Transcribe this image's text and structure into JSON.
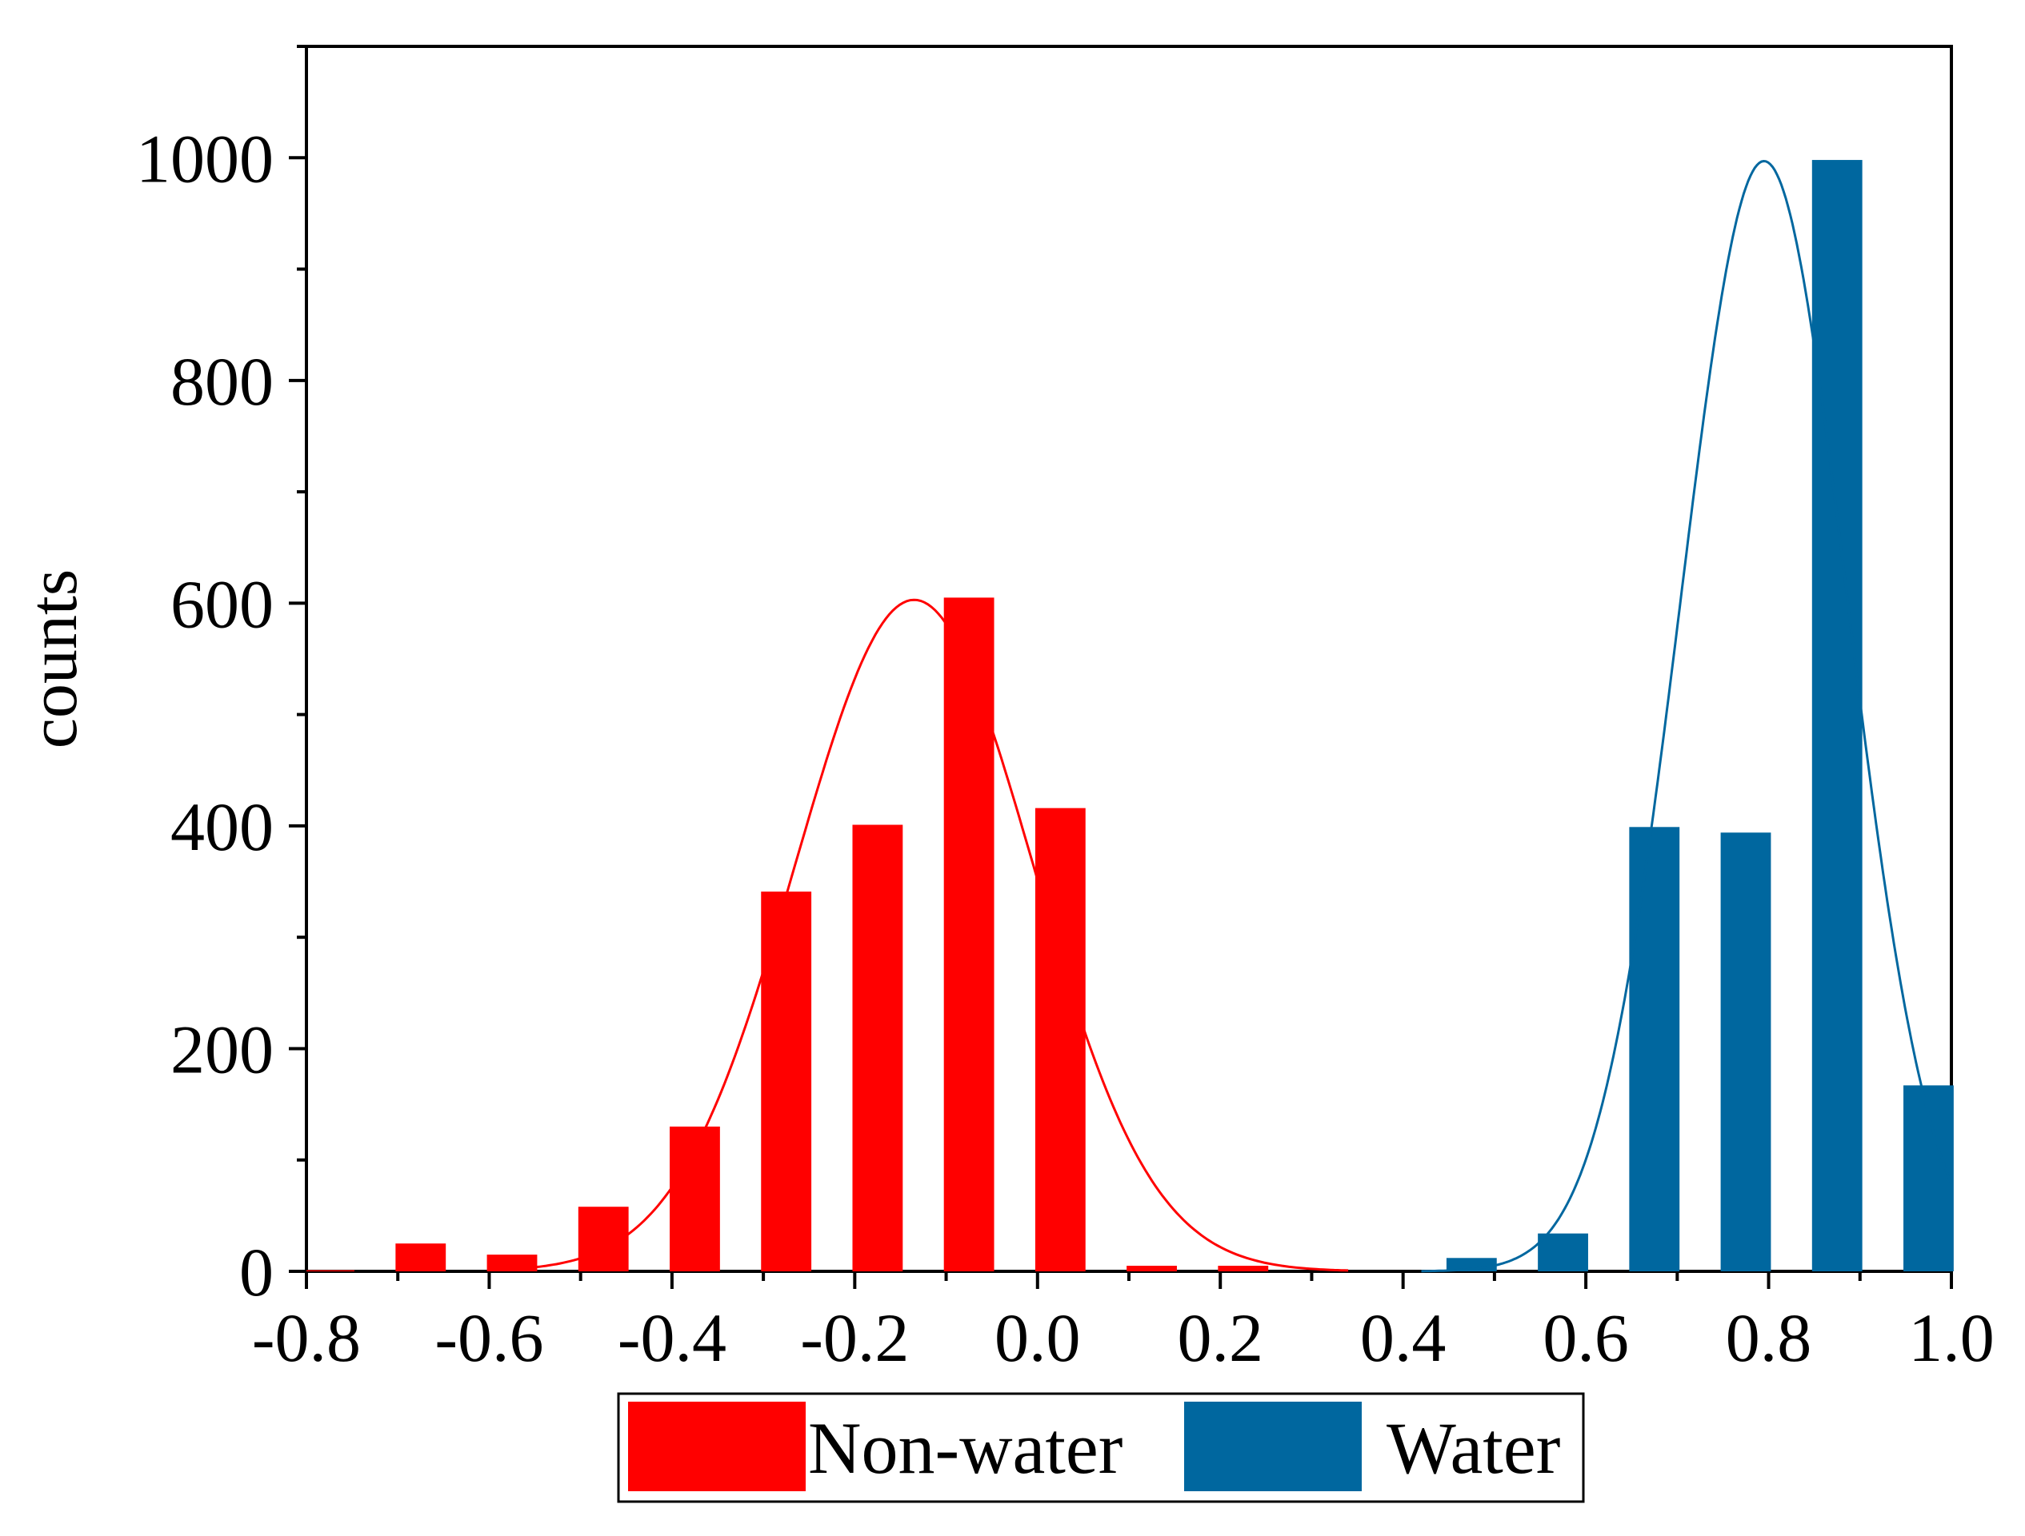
{
  "chart_data": {
    "type": "bar",
    "title": "",
    "xlabel": "",
    "ylabel": "counts",
    "xlim": [
      -0.8,
      1.0
    ],
    "ylim": [
      0,
      1100
    ],
    "bar_width": 0.055,
    "x_ticks": [
      "-0.8",
      "-0.6",
      "-0.4",
      "-0.2",
      "0.0",
      "0.2",
      "0.4",
      "0.6",
      "0.8",
      "1.0"
    ],
    "x_tick_values": [
      -0.8,
      -0.6,
      -0.4,
      -0.2,
      0.0,
      0.2,
      0.4,
      0.6,
      0.8,
      1.0
    ],
    "y_ticks": [
      "0",
      "200",
      "400",
      "600",
      "800",
      "1000"
    ],
    "y_tick_values": [
      0,
      200,
      400,
      600,
      800,
      1000
    ],
    "legend_position": "bottom-center",
    "series": [
      {
        "name": "Non-water",
        "color": "#ff0000",
        "x": [
          -0.775,
          -0.675,
          -0.575,
          -0.475,
          -0.375,
          -0.275,
          -0.175,
          -0.075,
          0.025,
          0.125,
          0.225
        ],
        "values": [
          1,
          25,
          15,
          58,
          130,
          341,
          401,
          605,
          416,
          5,
          5
        ],
        "fit": {
          "type": "gaussian",
          "mean": -0.135,
          "sigma": 0.13,
          "peak": 603,
          "range": [
            -0.58,
            0.34
          ]
        }
      },
      {
        "name": "Water",
        "color": "#00679f",
        "x": [
          0.475,
          0.575,
          0.675,
          0.775,
          0.875,
          0.975
        ],
        "values": [
          12,
          34,
          399,
          394,
          998,
          167
        ],
        "fit": {
          "type": "gaussian",
          "mean": 0.795,
          "sigma": 0.091,
          "peak": 997,
          "range": [
            0.42,
            1.0
          ]
        }
      }
    ]
  }
}
